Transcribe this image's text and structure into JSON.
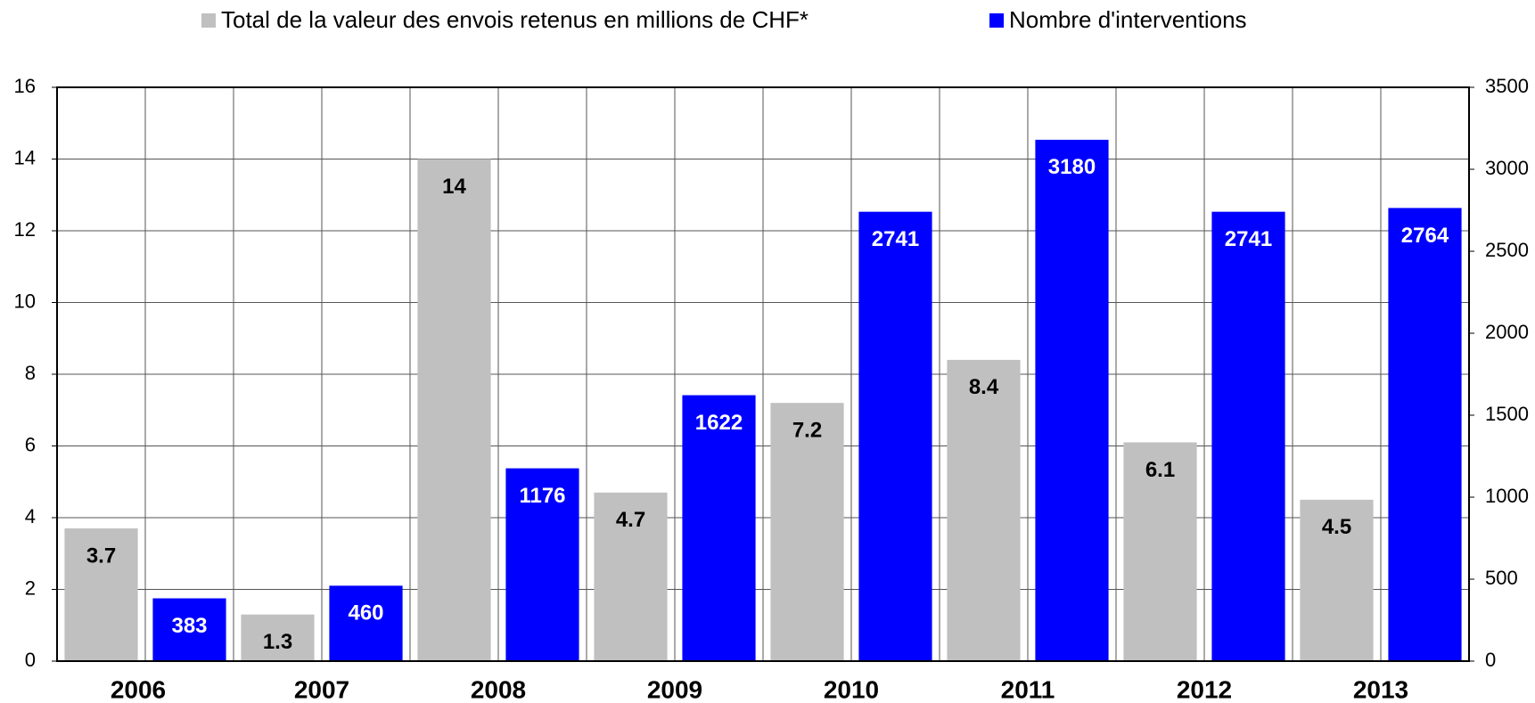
{
  "chart_data": {
    "type": "bar",
    "categories": [
      "2006",
      "2007",
      "2008",
      "2009",
      "2010",
      "2011",
      "2012",
      "2013"
    ],
    "series": [
      {
        "name": "Total de la valeur des envois retenus en millions de CHF*",
        "color": "#c0c0c0",
        "values": [
          3.7,
          1.3,
          14,
          4.7,
          7.2,
          8.4,
          6.1,
          4.5
        ]
      },
      {
        "name": "Nombre d'interventions",
        "color": "#0000ff",
        "axis": "y2",
        "values": [
          383,
          460,
          1176,
          1622,
          2741,
          3180,
          2741,
          2764
        ]
      }
    ],
    "ylim": [
      0,
      16
    ],
    "yticks": [
      0,
      2,
      4,
      6,
      8,
      10,
      12,
      14,
      16
    ],
    "y2lim": [
      0,
      3500
    ],
    "y2ticks": [
      0,
      500,
      1000,
      1500,
      2000,
      2500,
      3000,
      3500
    ],
    "grid": true,
    "legend": "top"
  }
}
